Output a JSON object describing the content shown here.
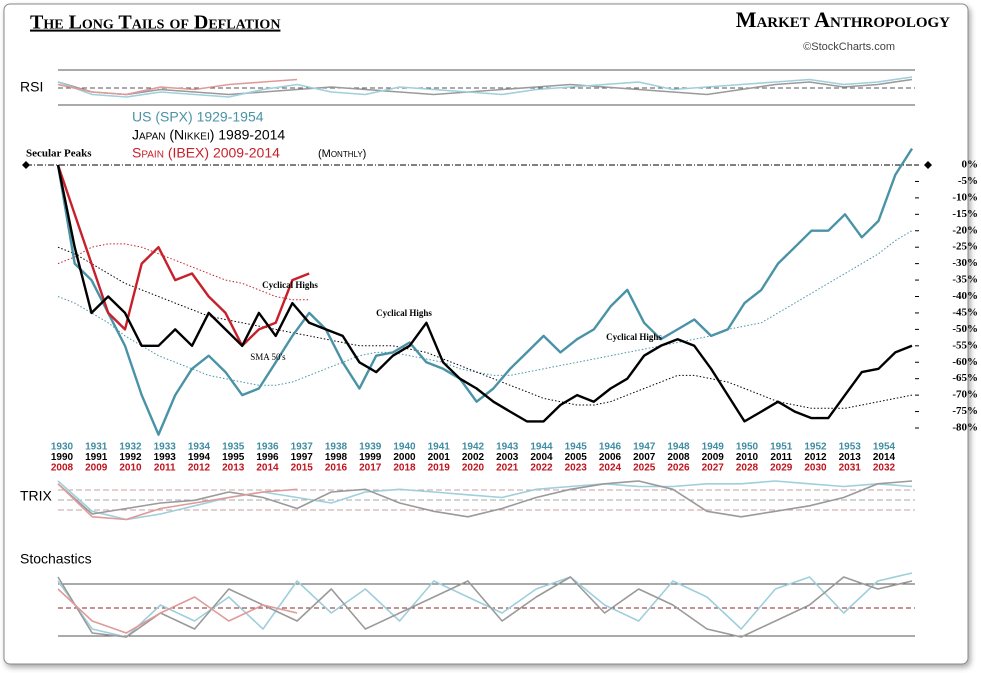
{
  "header": {
    "brand": "Market Anthropology",
    "credit": "©StockCharts.com"
  },
  "chart_data": [
    {
      "type": "line",
      "title": "The Long Tails of Deflation",
      "legend_note": "(Monthly)",
      "annotations": [
        "Secular Peaks",
        "Cyclical Highs",
        "Cyclical Highs",
        "Cyclical Highs",
        "SMA 50's"
      ],
      "x_labels": [
        [
          1930,
          1931,
          1932,
          1933,
          1934,
          1935,
          1936,
          1937,
          1938,
          1939,
          1940,
          1941,
          1942,
          1943,
          1944,
          1945,
          1946,
          1947,
          1948,
          1949,
          1950,
          1951,
          1952,
          1953,
          1954
        ],
        [
          1990,
          1991,
          1992,
          1993,
          1994,
          1995,
          1996,
          1997,
          1998,
          1999,
          2000,
          2001,
          2002,
          2003,
          2004,
          2005,
          2006,
          2007,
          2008,
          2009,
          2010,
          2011,
          2012,
          2013,
          2014
        ],
        [
          2008,
          2009,
          2010,
          2011,
          2012,
          2013,
          2014,
          2015,
          2016,
          2017,
          2018,
          2019,
          2020,
          2021,
          2022,
          2023,
          2024,
          2025,
          2026,
          2027,
          2028,
          2029,
          2030,
          2031,
          2032
        ]
      ],
      "x_label_colors": [
        "#3f8da3",
        "#000000",
        "#c0141e"
      ],
      "ylim": [
        -84,
        6
      ],
      "yticks": [
        {
          "value": 0,
          "label": "0%"
        },
        {
          "value": -5,
          "label": "-5%"
        },
        {
          "value": -10,
          "label": "-10%"
        },
        {
          "value": -15,
          "label": "-15%"
        },
        {
          "value": -20,
          "label": "-20%"
        },
        {
          "value": -25,
          "label": "-25%"
        },
        {
          "value": -30,
          "label": "-30%"
        },
        {
          "value": -35,
          "label": "-35%"
        },
        {
          "value": -40,
          "label": "-40%"
        },
        {
          "value": -45,
          "label": "-45%"
        },
        {
          "value": -50,
          "label": "-50%"
        },
        {
          "value": -55,
          "label": "-55%"
        },
        {
          "value": -60,
          "label": "-60%"
        },
        {
          "value": -65,
          "label": "-65%"
        },
        {
          "value": -70,
          "label": "-70%"
        },
        {
          "value": -75,
          "label": "-75%"
        },
        {
          "value": -80,
          "label": "-80%"
        }
      ],
      "series": [
        {
          "name": "US (SPX) 1929-1954",
          "color": "#4a93a6",
          "values": [
            0,
            -30,
            -35,
            -45,
            -55,
            -70,
            -82,
            -70,
            -62,
            -58,
            -63,
            -70,
            -68,
            -60,
            -52,
            -45,
            -50,
            -60,
            -68,
            -58,
            -57,
            -54,
            -60,
            -62,
            -65,
            -72,
            -68,
            -62,
            -57,
            -52,
            -57,
            -53,
            -50,
            -43,
            -38,
            -48,
            -53,
            -50,
            -47,
            -52,
            -50,
            -42,
            -38,
            -30,
            -25,
            -20,
            -20,
            -15,
            -22,
            -17,
            -3,
            5
          ]
        },
        {
          "name": "Japan (Nikkei) 1989-2014",
          "color": "#000000",
          "values": [
            0,
            -25,
            -45,
            -40,
            -45,
            -55,
            -55,
            -50,
            -55,
            -45,
            -50,
            -55,
            -45,
            -52,
            -42,
            -48,
            -50,
            -52,
            -60,
            -63,
            -58,
            -55,
            -48,
            -60,
            -65,
            -68,
            -72,
            -75,
            -78,
            -78,
            -73,
            -70,
            -72,
            -68,
            -65,
            -58,
            -55,
            -53,
            -55,
            -62,
            -70,
            -78,
            -75,
            -72,
            -75,
            -77,
            -77,
            -70,
            -63,
            -62,
            -57,
            -55
          ]
        },
        {
          "name": "Spain (IBEX) 2009-2014",
          "color": "#c8202a",
          "values": [
            0,
            -15,
            -30,
            -45,
            -50,
            -30,
            -25,
            -35,
            -33,
            -40,
            -45,
            -55,
            -50,
            -48,
            -35,
            -33
          ]
        }
      ],
      "sma": [
        {
          "color": "#4a93a6",
          "values": [
            -40,
            -42,
            -45,
            -48,
            -52,
            -55,
            -58,
            -60,
            -62,
            -64,
            -65,
            -66,
            -67,
            -67,
            -66,
            -64,
            -62,
            -60,
            -58,
            -57,
            -57,
            -58,
            -59,
            -60,
            -62,
            -63,
            -64,
            -64,
            -63,
            -62,
            -61,
            -60,
            -59,
            -58,
            -57,
            -56,
            -55,
            -54,
            -53,
            -52,
            -50,
            -49,
            -48,
            -45,
            -42,
            -39,
            -36,
            -33,
            -30,
            -27,
            -23,
            -20
          ]
        },
        {
          "color": "#000000",
          "values": [
            -25,
            -27,
            -30,
            -33,
            -36,
            -38,
            -40,
            -42,
            -44,
            -46,
            -47,
            -48,
            -49,
            -50,
            -51,
            -52,
            -53,
            -54,
            -55,
            -55,
            -55,
            -56,
            -57,
            -59,
            -61,
            -63,
            -65,
            -67,
            -69,
            -71,
            -72,
            -73,
            -73,
            -72,
            -70,
            -68,
            -66,
            -64,
            -64,
            -65,
            -66,
            -68,
            -70,
            -72,
            -73,
            -74,
            -74,
            -74,
            -73,
            -72,
            -71,
            -70
          ]
        },
        {
          "color": "#c8202a",
          "values": [
            -30,
            -28,
            -25,
            -24,
            -24,
            -25,
            -27,
            -29,
            -31,
            -33,
            -35,
            -36,
            -38,
            -40,
            -41,
            -41
          ]
        }
      ]
    },
    {
      "type": "indicator",
      "title": "RSI",
      "ylim": [
        0,
        100
      ],
      "series": [
        {
          "color": "#9a9a9a",
          "values": [
            60,
            40,
            35,
            45,
            40,
            35,
            40,
            45,
            50,
            45,
            40,
            35,
            40,
            45,
            50,
            55,
            50,
            45,
            40,
            35,
            45,
            55,
            60,
            50,
            55,
            65
          ]
        },
        {
          "color": "#9fcfdc",
          "values": [
            60,
            35,
            30,
            40,
            35,
            30,
            45,
            55,
            40,
            35,
            50,
            45,
            40,
            35,
            45,
            50,
            55,
            60,
            45,
            50,
            55,
            60,
            65,
            55,
            60,
            70
          ]
        },
        {
          "color": "#e09a9a",
          "values": [
            55,
            40,
            35,
            50,
            45,
            55,
            60,
            65
          ]
        }
      ]
    },
    {
      "type": "indicator",
      "title": "TRIX",
      "ylim": [
        -1,
        1
      ],
      "series": [
        {
          "color": "#9fcfdc",
          "values": [
            0.6,
            -0.5,
            -0.8,
            -0.6,
            -0.3,
            0,
            0.2,
            0,
            -0.2,
            0.2,
            0.3,
            0.2,
            0.1,
            0,
            0.3,
            0.4,
            0.5,
            0.4,
            0.4,
            0.5,
            0.5,
            0.6,
            0.5,
            0.4,
            0.5,
            0.4
          ]
        },
        {
          "color": "#9a9a9a",
          "values": [
            0.5,
            -0.6,
            -0.4,
            -0.2,
            -0.1,
            0.2,
            0,
            -0.4,
            0.2,
            0.3,
            -0.2,
            -0.5,
            -0.7,
            -0.4,
            0,
            0.3,
            0.5,
            0.6,
            0.3,
            -0.5,
            -0.7,
            -0.5,
            -0.3,
            0,
            0.5,
            0.6
          ]
        },
        {
          "color": "#e09a9a",
          "values": [
            0.5,
            -0.7,
            -0.8,
            -0.4,
            -0.2,
            0,
            0.2,
            0.3
          ]
        }
      ]
    },
    {
      "type": "indicator",
      "title": "Stochastics",
      "ylim": [
        0,
        100
      ],
      "series": [
        {
          "color": "#9fcfdc",
          "values": [
            80,
            20,
            10,
            50,
            30,
            60,
            20,
            80,
            40,
            70,
            30,
            80,
            60,
            40,
            70,
            85,
            50,
            30,
            80,
            60,
            20,
            70,
            85,
            40,
            80,
            90
          ]
        },
        {
          "color": "#9a9a9a",
          "values": [
            85,
            15,
            10,
            40,
            20,
            70,
            50,
            30,
            70,
            20,
            40,
            60,
            80,
            30,
            60,
            85,
            40,
            70,
            50,
            20,
            10,
            30,
            50,
            85,
            70,
            80
          ]
        },
        {
          "color": "#e09a9a",
          "values": [
            70,
            30,
            15,
            40,
            60,
            30,
            50,
            40
          ]
        }
      ]
    }
  ]
}
